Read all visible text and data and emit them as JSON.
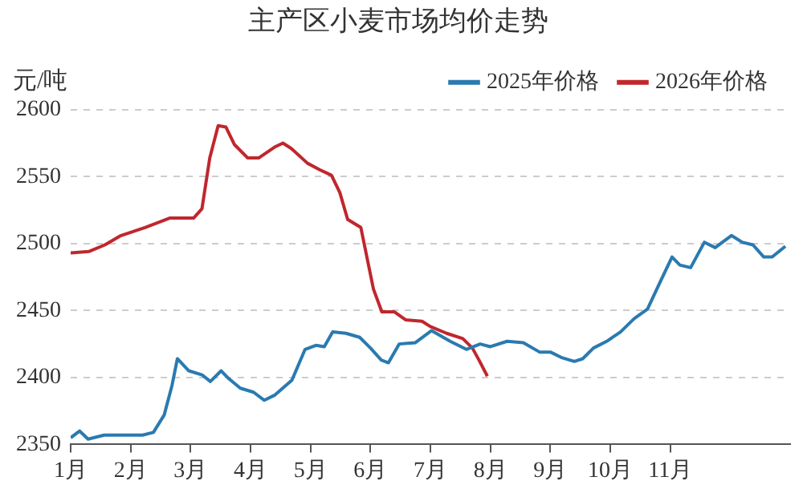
{
  "chart_data": {
    "type": "line",
    "title": "主产区小麦市场均价走势",
    "ylabel": "元/吨",
    "xlim": [
      1,
      13
    ],
    "xticks": [
      {
        "value": 1,
        "label": "1月"
      },
      {
        "value": 2,
        "label": "2月"
      },
      {
        "value": 3,
        "label": "3月"
      },
      {
        "value": 4,
        "label": "4月"
      },
      {
        "value": 5,
        "label": "5月"
      },
      {
        "value": 6,
        "label": "6月"
      },
      {
        "value": 7,
        "label": "7月"
      },
      {
        "value": 8,
        "label": "8月"
      },
      {
        "value": 9,
        "label": "9月"
      },
      {
        "value": 10,
        "label": "10月"
      },
      {
        "value": 11,
        "label": "11月"
      }
    ],
    "ylim": [
      2350,
      2600
    ],
    "yticks": [
      2350,
      2400,
      2450,
      2500,
      2550,
      2600
    ],
    "grid": "y",
    "legend": "top right",
    "marker": "none",
    "line_style": "solid",
    "series": [
      {
        "name": "2025年价格",
        "color": "#2a7ab0",
        "x": [
          1,
          1.15,
          1.29,
          1.56,
          1.92,
          2.2,
          2.38,
          2.56,
          2.69,
          2.78,
          2.97,
          3.19,
          3.33,
          3.51,
          3.64,
          3.83,
          4.05,
          4.23,
          4.41,
          4.69,
          4.91,
          5.09,
          5.23,
          5.37,
          5.59,
          5.82,
          6.0,
          6.18,
          6.3,
          6.48,
          6.75,
          7.02,
          7.33,
          7.6,
          7.83,
          8.0,
          8.28,
          8.55,
          8.82,
          9.0,
          9.18,
          9.4,
          9.54,
          9.72,
          9.94,
          10.17,
          10.4,
          10.62,
          10.85,
          11.03,
          11.16,
          11.34,
          11.57,
          11.75,
          12.02,
          12.2,
          12.38,
          12.56,
          12.7,
          12.92
        ],
        "values": [
          2355,
          2360,
          2354,
          2357,
          2357,
          2357,
          2359,
          2372,
          2394,
          2414,
          2405,
          2402,
          2397,
          2405,
          2399,
          2392,
          2389,
          2383,
          2387,
          2398,
          2421,
          2424,
          2423,
          2434,
          2433,
          2430,
          2422,
          2413,
          2411,
          2425,
          2426,
          2435,
          2427,
          2421,
          2425,
          2423,
          2427,
          2426,
          2419,
          2419,
          2415,
          2412,
          2414,
          2422,
          2427,
          2434,
          2444,
          2451,
          2473,
          2490,
          2484,
          2482,
          2501,
          2497,
          2506,
          2501,
          2499,
          2490,
          2490,
          2498
        ]
      },
      {
        "name": "2026年价格",
        "color": "#c0272d",
        "x": [
          1,
          1.3,
          1.57,
          1.84,
          2.24,
          2.65,
          3.05,
          3.19,
          3.32,
          3.46,
          3.59,
          3.73,
          3.95,
          4.14,
          4.4,
          4.54,
          4.68,
          4.95,
          5.16,
          5.35,
          5.49,
          5.62,
          5.84,
          6.05,
          6.19,
          6.4,
          6.59,
          6.86,
          7.0,
          7.27,
          7.54,
          7.7,
          7.81,
          7.95
        ],
        "values": [
          2493,
          2494,
          2499,
          2506,
          2512,
          2519,
          2519,
          2526,
          2564,
          2588,
          2587,
          2574,
          2564,
          2564,
          2572,
          2575,
          2571,
          2560,
          2555,
          2551,
          2538,
          2518,
          2512,
          2466,
          2449,
          2449,
          2443,
          2442,
          2438,
          2433,
          2429,
          2422,
          2413,
          2401
        ]
      }
    ]
  }
}
